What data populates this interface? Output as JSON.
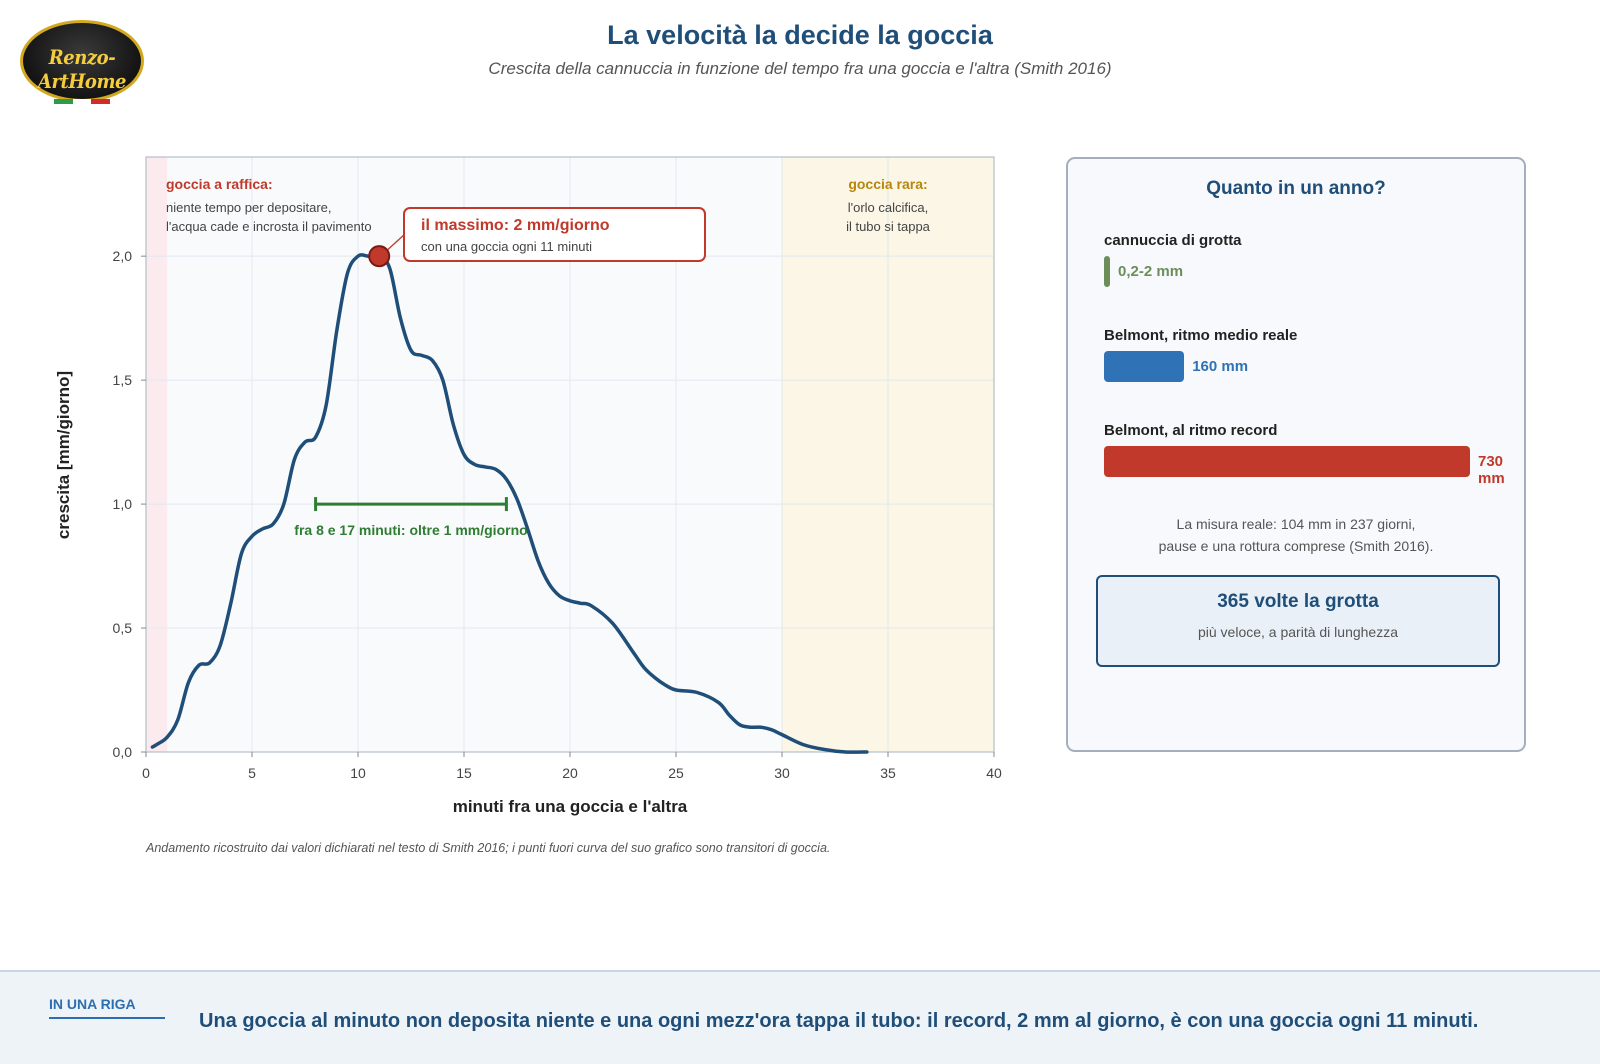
{
  "logo": {
    "text": "Renzo-ArtHome",
    "flag_colors": [
      "#2e9b47",
      "#ffffff",
      "#d22b2b"
    ]
  },
  "header": {
    "title": "La velocità la decide la goccia",
    "subtitle": "Crescita della cannuccia in funzione del tempo fra una goccia e l'altra (Smith 2016)"
  },
  "chart_data": {
    "type": "line",
    "title": "",
    "xlabel": "minuti fra una goccia e l'altra",
    "ylabel": "crescita [mm/giorno]",
    "xlim": [
      0,
      40
    ],
    "ylim": [
      0,
      2.4
    ],
    "x_ticks": [
      "0",
      "5",
      "10",
      "15",
      "20",
      "25",
      "30",
      "35",
      "40"
    ],
    "y_ticks": [
      "0,0",
      "0,5",
      "1,0",
      "1,5",
      "2,0"
    ],
    "x_tick_values": [
      0,
      5,
      10,
      15,
      20,
      25,
      30,
      35,
      40
    ],
    "y_tick_values": [
      0,
      0.5,
      1.0,
      1.5,
      2.0
    ],
    "grid": true,
    "series": [
      {
        "color": "#1f4e79",
        "x": [
          0.3,
          0.5,
          1.0,
          1.5,
          2.0,
          2.5,
          3.0,
          3.5,
          4.0,
          4.5,
          5.0,
          5.5,
          6.0,
          6.5,
          7.0,
          7.5,
          8.0,
          8.5,
          9.0,
          9.5,
          10.0,
          10.5,
          11.0,
          11.5,
          12.0,
          12.5,
          13.0,
          13.5,
          14.0,
          14.5,
          15.0,
          15.5,
          16.0,
          16.5,
          17.0,
          17.5,
          18.0,
          18.5,
          19.0,
          19.5,
          20.0,
          20.5,
          21.0,
          22.0,
          23.0,
          23.5,
          24.0,
          24.5,
          25.0,
          26.0,
          27.0,
          27.5,
          28.0,
          28.5,
          29.0,
          29.5,
          30.0,
          31.0,
          32.0,
          33.0,
          34.0
        ],
        "y": [
          0.02,
          0.03,
          0.06,
          0.13,
          0.28,
          0.35,
          0.36,
          0.43,
          0.6,
          0.8,
          0.87,
          0.9,
          0.92,
          1.0,
          1.18,
          1.25,
          1.27,
          1.4,
          1.7,
          1.93,
          2.0,
          2.0,
          2.0,
          1.95,
          1.75,
          1.62,
          1.6,
          1.58,
          1.5,
          1.32,
          1.2,
          1.16,
          1.15,
          1.14,
          1.1,
          1.02,
          0.9,
          0.77,
          0.68,
          0.63,
          0.61,
          0.6,
          0.59,
          0.52,
          0.4,
          0.34,
          0.3,
          0.27,
          0.25,
          0.24,
          0.2,
          0.15,
          0.11,
          0.1,
          0.1,
          0.09,
          0.07,
          0.03,
          0.01,
          0.0,
          0.0
        ]
      }
    ],
    "regions": [
      {
        "x0": 0,
        "x1": 1,
        "color": "#fbebee",
        "title": "goccia a raffica:",
        "title_color": "#c0392b",
        "lines": [
          "niente tempo per depositare,",
          "l'acqua cade e incrosta il pavimento"
        ]
      },
      {
        "x0": 30,
        "x1": 40,
        "color": "#fbf6e6",
        "title": "goccia rara:",
        "title_color": "#b8860b",
        "lines": [
          "l'orlo calcifica,",
          "il tubo si tappa"
        ]
      }
    ],
    "peak": {
      "x": 11,
      "y": 2.0,
      "title": "il massimo: 2 mm/giorno",
      "text": "con una goccia ogni 11 minuti"
    },
    "range_marker": {
      "x0": 8,
      "x1": 17,
      "y": 1.0,
      "label": "fra 8 e 17 minuti: oltre 1 mm/giorno",
      "color": "#2e7d32"
    },
    "note": "Andamento ricostruito dai valori dichiarati nel testo di Smith 2016; i punti fuori curva del suo grafico sono transitori di goccia."
  },
  "panel": {
    "title": "Quanto in un anno?",
    "bar_scale_max": 730,
    "bars": [
      {
        "label": "cannuccia di grotta",
        "value": 2,
        "value_text": "0,2-2 mm",
        "color": "#6b8e5a"
      },
      {
        "label": "Belmont, ritmo medio reale",
        "value": 160,
        "value_text": "160 mm",
        "color": "#2f72b5"
      },
      {
        "label": "Belmont, al ritmo record",
        "value": 730,
        "value_text": "730 mm",
        "color": "#c0392b"
      }
    ],
    "note_lines": [
      "La misura reale: 104 mm in 237 giorni,",
      "pause e una rottura comprese (Smith 2016)."
    ],
    "highlight_main": "365 volte la grotta",
    "highlight_sub": "più veloce, a parità di lunghezza"
  },
  "footer": {
    "tag": "IN UNA RIGA",
    "text": "Una goccia al minuto non deposita niente e una ogni mezz'ora tappa il tubo: il record, 2 mm al giorno, è con una goccia ogni 11 minuti."
  }
}
